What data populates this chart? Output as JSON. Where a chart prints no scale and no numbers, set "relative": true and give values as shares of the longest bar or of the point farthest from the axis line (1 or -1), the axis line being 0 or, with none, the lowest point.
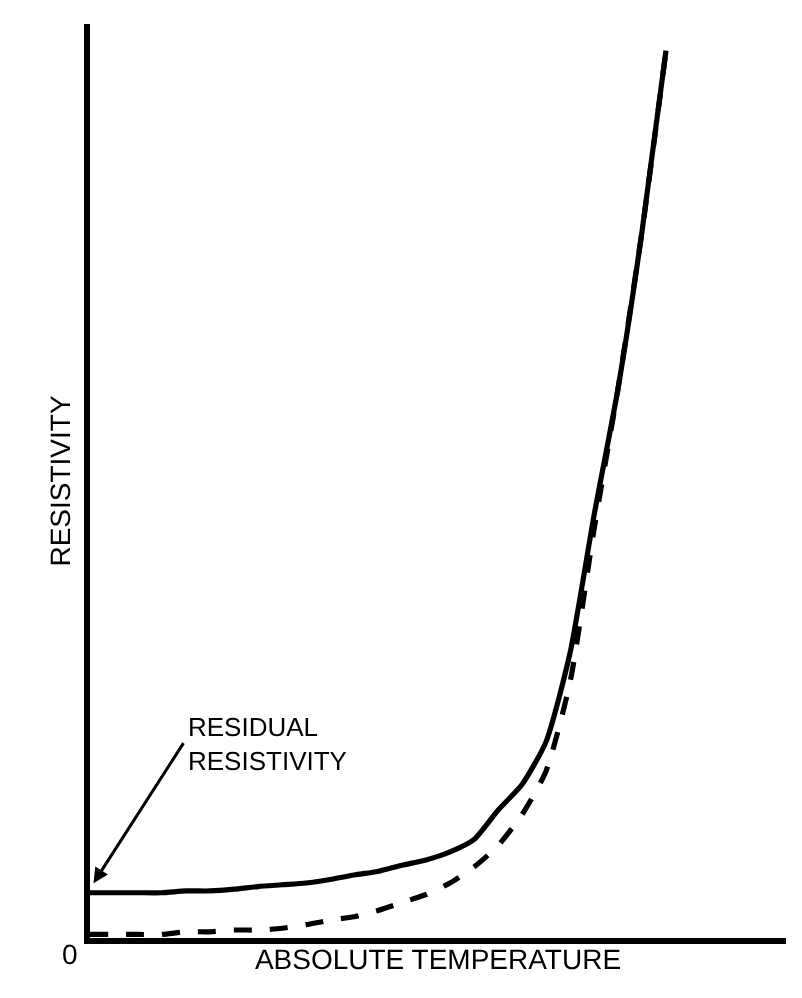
{
  "chart_data": {
    "type": "line",
    "relative": true,
    "xlabel": "ABSOLUTE TEMPERATURE",
    "ylabel": "RESISTIVITY",
    "categories": [
      null,
      null,
      null,
      null,
      null,
      null,
      null,
      null,
      null,
      null,
      null,
      null,
      null,
      null,
      null,
      null,
      null,
      null,
      null,
      null,
      null,
      null,
      null,
      null,
      null,
      null,
      null,
      null,
      null,
      null
    ],
    "series": [
      {
        "color": "#000000",
        "line_style": "solid",
        "values": [
          0.051,
          0.051,
          0.051,
          0.051,
          0.053,
          0.053,
          0.055,
          0.058,
          0.06,
          0.062,
          0.066,
          0.071,
          0.075,
          0.082,
          0.088,
          0.097,
          0.111,
          0.144,
          0.173,
          0.221,
          0.321,
          0.476,
          0.619,
          0.796,
          1,
          null,
          null,
          null,
          null,
          null
        ]
      },
      {
        "color": "#000000",
        "line_style": "dashed",
        "values": [
          0.004,
          0.004,
          0.004,
          0.004,
          0.007,
          0.007,
          0.009,
          0.009,
          0.011,
          0.015,
          0.02,
          0.024,
          0.031,
          0.04,
          0.049,
          0.062,
          0.08,
          0.104,
          0.139,
          0.188,
          0.288,
          0.46,
          0.619,
          0.796,
          1,
          null,
          null,
          null,
          null,
          null
        ]
      }
    ],
    "annotations": [
      "RESIDUAL\nRESISTIVITY",
      "0"
    ],
    "marker": "none"
  }
}
